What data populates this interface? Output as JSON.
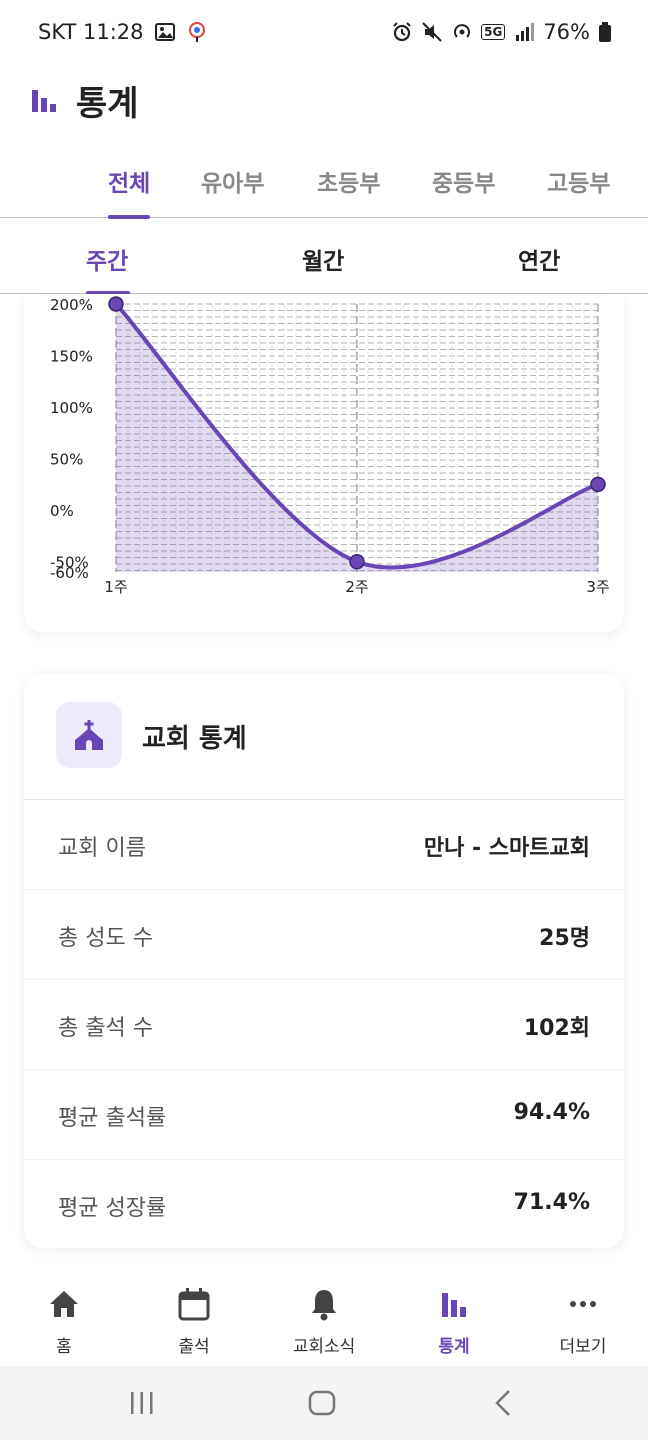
{
  "status_bar": {
    "carrier_time": "SKT 11:28",
    "battery": "76%",
    "network": "5G"
  },
  "header": {
    "title": "통계"
  },
  "dept_tabs": [
    {
      "label": "전체",
      "active": true
    },
    {
      "label": "유아부",
      "active": false
    },
    {
      "label": "초등부",
      "active": false
    },
    {
      "label": "중등부",
      "active": false
    },
    {
      "label": "고등부",
      "active": false
    }
  ],
  "period_tabs": [
    {
      "label": "주간",
      "active": true
    },
    {
      "label": "월간",
      "active": false
    },
    {
      "label": "연간",
      "active": false
    }
  ],
  "chart_data": {
    "type": "area",
    "categories": [
      "1주",
      "2주",
      "3주"
    ],
    "series": [
      {
        "values": [
          200,
          -50,
          25
        ]
      }
    ],
    "y_ticks": [
      "200%",
      "150%",
      "100%",
      "50%",
      "0%",
      "-50%",
      "-60%"
    ],
    "ylim": [
      -60,
      200
    ],
    "grid": true,
    "color": "#6a45b5"
  },
  "stats": {
    "title": "교회 통계",
    "rows": [
      {
        "label": "교회 이름",
        "value": "만나 - 스마트교회"
      },
      {
        "label": "총 성도 수",
        "value": "25명"
      },
      {
        "label": "총 출석 수",
        "value": "102회"
      },
      {
        "label": "평균 출석률",
        "value": "94.4%"
      },
      {
        "label": "평균 성장률",
        "value": "71.4%"
      }
    ]
  },
  "bottom_nav": [
    {
      "label": "홈",
      "icon": "home-icon",
      "active": false
    },
    {
      "label": "출석",
      "icon": "calendar-icon",
      "active": false
    },
    {
      "label": "교회소식",
      "icon": "bell-icon",
      "active": false
    },
    {
      "label": "통계",
      "icon": "bar-chart-icon",
      "active": true
    },
    {
      "label": "더보기",
      "icon": "more-icon",
      "active": false
    }
  ],
  "colors": {
    "accent": "#6a45b5",
    "accent_light": "#efeafa"
  }
}
